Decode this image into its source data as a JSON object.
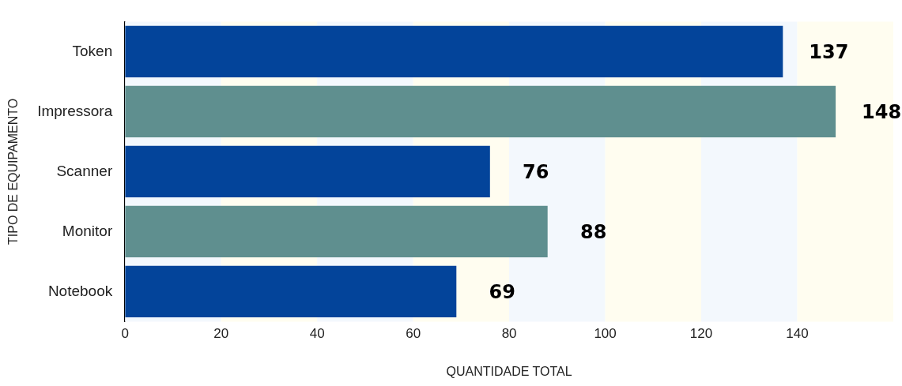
{
  "chart_data": {
    "type": "bar",
    "orientation": "horizontal",
    "xlabel": "QUANTIDADE TOTAL",
    "ylabel": "TIPO DE EQUIPAMENTO",
    "categories": [
      "Token",
      "Impressora",
      "Scanner",
      "Monitor",
      "Notebook"
    ],
    "values": [
      137,
      148,
      76,
      88,
      69
    ],
    "colors": [
      "#03449a",
      "#5f8f8f",
      "#03449a",
      "#5f8f8f",
      "#03449a"
    ],
    "xlim": [
      0,
      160
    ],
    "xticks": [
      0,
      20,
      40,
      60,
      80,
      100,
      120,
      140
    ],
    "bands": [
      {
        "axis": "x",
        "from": 0,
        "to": 20,
        "color": "#f3f8fd"
      },
      {
        "axis": "x",
        "from": 20,
        "to": 40,
        "color": "#fffdf0"
      },
      {
        "axis": "x",
        "from": 40,
        "to": 60,
        "color": "#f3f8fd"
      },
      {
        "axis": "x",
        "from": 60,
        "to": 80,
        "color": "#fffdf0"
      },
      {
        "axis": "x",
        "from": 80,
        "to": 100,
        "color": "#f3f8fd"
      },
      {
        "axis": "x",
        "from": 100,
        "to": 120,
        "color": "#fffdf0"
      },
      {
        "axis": "x",
        "from": 120,
        "to": 140,
        "color": "#f3f8fd"
      },
      {
        "axis": "x",
        "from": 140,
        "to": 160,
        "color": "#fffdf0"
      }
    ],
    "data_labels": true,
    "grid": false,
    "legend": false
  }
}
